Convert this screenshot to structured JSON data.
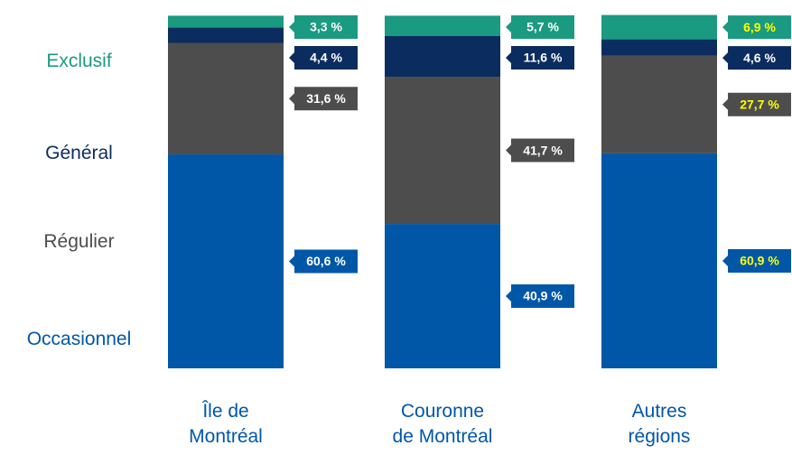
{
  "chart_data": {
    "type": "stacked_bar",
    "categories": [
      "Île de\nMontréal",
      "Couronne\nde Montréal",
      "Autres\nrégions"
    ],
    "ylim": [
      0,
      100
    ],
    "series": [
      {
        "name": "Occasionnel",
        "color": "#0057a8",
        "values": [
          60.6,
          40.9,
          60.9
        ],
        "value_labels": [
          "60,6 %",
          "40,9 %",
          "60,9 %"
        ],
        "label_colors": [
          "#ffffff",
          "#ffffff",
          "#ffff00"
        ]
      },
      {
        "name": "Régulier",
        "color": "#4d4d4d",
        "values": [
          31.6,
          41.7,
          27.7
        ],
        "value_labels": [
          "31,6 %",
          "41,7 %",
          "27,7 %"
        ],
        "label_colors": [
          "#ffffff",
          "#ffffff",
          "#ffff00"
        ]
      },
      {
        "name": "Général",
        "color": "#0b2c5f",
        "values": [
          4.4,
          11.6,
          4.6
        ],
        "value_labels": [
          "4,4 %",
          "11,6 %",
          "4,6 %"
        ],
        "label_colors": [
          "#ffffff",
          "#ffffff",
          "#ffffff"
        ]
      },
      {
        "name": "Exclusif",
        "color": "#1a9a80",
        "values": [
          3.3,
          5.7,
          6.9
        ],
        "value_labels": [
          "3,3 %",
          "5,7 %",
          "6,9 %"
        ],
        "label_colors": [
          "#ffffff",
          "#ffffff",
          "#ffff00"
        ]
      }
    ]
  }
}
